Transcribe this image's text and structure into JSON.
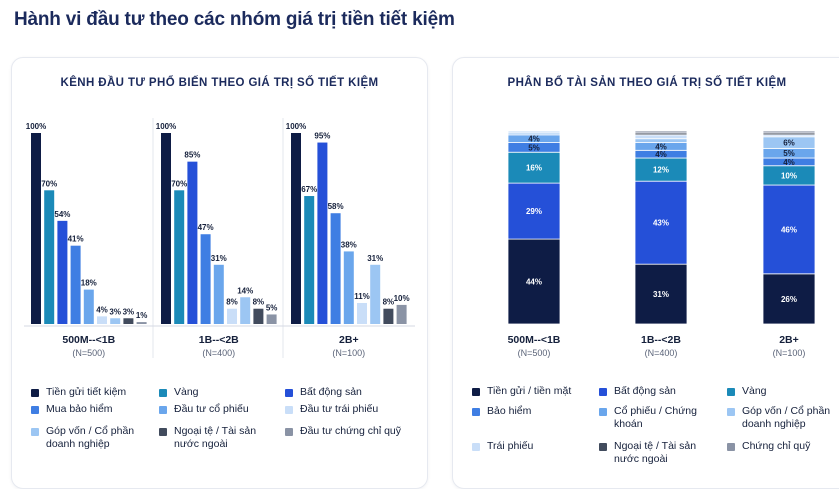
{
  "page": {
    "title": "Hành vi đầu tư theo các nhóm giá trị tiền tiết kiệm"
  },
  "left_card": {
    "title": "KÊNH ĐẦU TƯ PHỔ BIẾN THEO GIÁ TRỊ SỐ TIẾT KIỆM"
  },
  "right_card": {
    "title": "PHÂN BỔ TÀI SẢN THEO GIÁ TRỊ SỐ TIẾT KIỆM"
  },
  "chart_data": [
    {
      "type": "bar",
      "title": "KÊNH ĐẦU TƯ PHỔ BIẾN THEO GIÁ TRỊ SỐ TIẾT KIỆM",
      "categories": [
        "500M--<1B",
        "1B--<2B",
        "2B+"
      ],
      "sample_sizes": [
        "(N=500)",
        "(N=400)",
        "(N=100)"
      ],
      "ylim": [
        0,
        100
      ],
      "grid": false,
      "legend_placement": "bottom",
      "series": [
        {
          "name": "Tiền gửi tiết kiệm",
          "color": "#0e1c45",
          "values": [
            100,
            100,
            100
          ]
        },
        {
          "name": "Vàng",
          "color": "#1b8ab8",
          "values": [
            70,
            70,
            67
          ]
        },
        {
          "name": "Bất động sản",
          "color": "#2550d8",
          "values": [
            54,
            85,
            95
          ]
        },
        {
          "name": "Mua bảo hiểm",
          "color": "#3f7ee3",
          "values": [
            41,
            47,
            58
          ]
        },
        {
          "name": "Đầu tư cổ phiếu",
          "color": "#6aa6ec",
          "values": [
            18,
            31,
            38
          ]
        },
        {
          "name": "Đầu tư trái phiếu",
          "color": "#c9def8",
          "values": [
            4,
            8,
            11
          ]
        },
        {
          "name": "Góp vốn / Cổ phần doanh nghiệp",
          "color": "#9cc6f3",
          "values": [
            3,
            14,
            31
          ]
        },
        {
          "name": "Ngoại tệ / Tài sản nước ngoài",
          "color": "#414b5d",
          "values": [
            3,
            8,
            8
          ]
        },
        {
          "name": "Đầu tư chứng chỉ quỹ",
          "color": "#8a93a5",
          "values": [
            1,
            5,
            10
          ]
        }
      ]
    },
    {
      "type": "bar",
      "stacked": true,
      "title": "PHÂN BỔ TÀI SẢN THEO GIÁ TRỊ SỐ TIẾT KIỆM",
      "categories": [
        "500M--<1B",
        "1B--<2B",
        "2B+"
      ],
      "sample_sizes": [
        "(N=500)",
        "(N=400)",
        "(N=100)"
      ],
      "ylim": [
        0,
        100
      ],
      "grid": false,
      "legend_placement": "bottom",
      "series": [
        {
          "name": "Tiền gửi / tiền mặt",
          "color": "#0e1c45",
          "values": [
            44,
            31,
            26
          ]
        },
        {
          "name": "Bất động sản",
          "color": "#2550d8",
          "values": [
            29,
            43,
            46
          ]
        },
        {
          "name": "Vàng",
          "color": "#1b8ab8",
          "values": [
            16,
            12,
            10
          ]
        },
        {
          "name": "Bảo hiểm",
          "color": "#3f7ee3",
          "values": [
            5,
            4,
            4
          ]
        },
        {
          "name": "Cổ phiếu / Chứng khoán",
          "color": "#6aa6ec",
          "values": [
            4,
            4,
            5
          ]
        },
        {
          "name": "Góp vốn / Cổ phần doanh nghiệp",
          "color": "#9cc6f3",
          "values": [
            1,
            2,
            6
          ]
        },
        {
          "name": "Trái phiếu",
          "color": "#c9def8",
          "values": [
            1,
            2,
            1
          ]
        },
        {
          "name": "Ngoại tệ / Tài sản nước ngoài",
          "color": "#414b5d",
          "values": [
            0,
            1,
            1
          ]
        },
        {
          "name": "Chứng chỉ quỹ",
          "color": "#8a93a5",
          "values": [
            0,
            1,
            1
          ]
        }
      ],
      "printed_labels_min": 4
    }
  ]
}
